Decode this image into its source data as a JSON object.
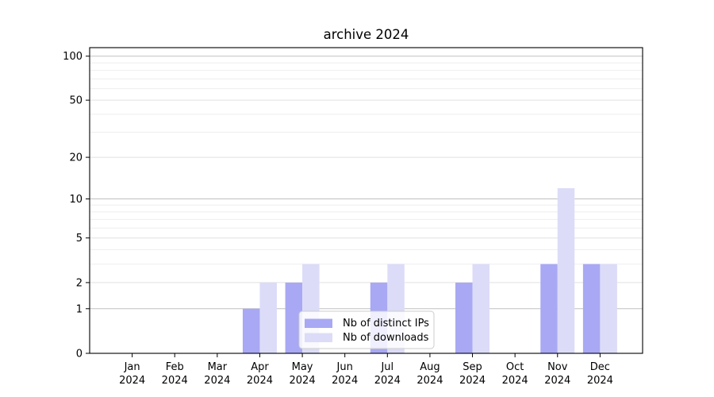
{
  "figure": {
    "background": "#ffffff"
  },
  "chart_data": {
    "type": "bar",
    "title": "archive 2024",
    "categories": [
      "Jan",
      "Feb",
      "Mar",
      "Apr",
      "May",
      "Jun",
      "Jul",
      "Aug",
      "Sep",
      "Oct",
      "Nov",
      "Dec"
    ],
    "x_year_label": "2024",
    "series": [
      {
        "name": "Nb of distinct IPs",
        "color": "#a8a8f4",
        "values": [
          0,
          0,
          0,
          1,
          2,
          0,
          2,
          0,
          2,
          0,
          3,
          3
        ]
      },
      {
        "name": "Nb of downloads",
        "color": "#dcdcf8",
        "values": [
          0,
          0,
          0,
          2,
          3,
          0,
          3,
          0,
          3,
          0,
          12,
          3
        ]
      }
    ],
    "yscale": "log1p",
    "ylim": [
      0,
      114.3
    ],
    "yticks": [
      0,
      1,
      2,
      5,
      10,
      20,
      50,
      100
    ],
    "grid_decade": [
      1,
      10,
      100
    ],
    "grid_mid": [
      2,
      5,
      20,
      50
    ],
    "grid_minor": [
      3,
      4,
      6,
      7,
      8,
      9,
      30,
      40,
      60,
      70,
      80,
      90
    ],
    "grid_on": true,
    "legend_position": "lower-center",
    "colors": {
      "axis": "#000000",
      "grid_decade": "#c0c0c0",
      "grid_mid": "#e0e0e0",
      "grid_minor": "#eeeeee",
      "legend_border": "#cccccc",
      "legend_fill_alpha": 0.82
    }
  }
}
